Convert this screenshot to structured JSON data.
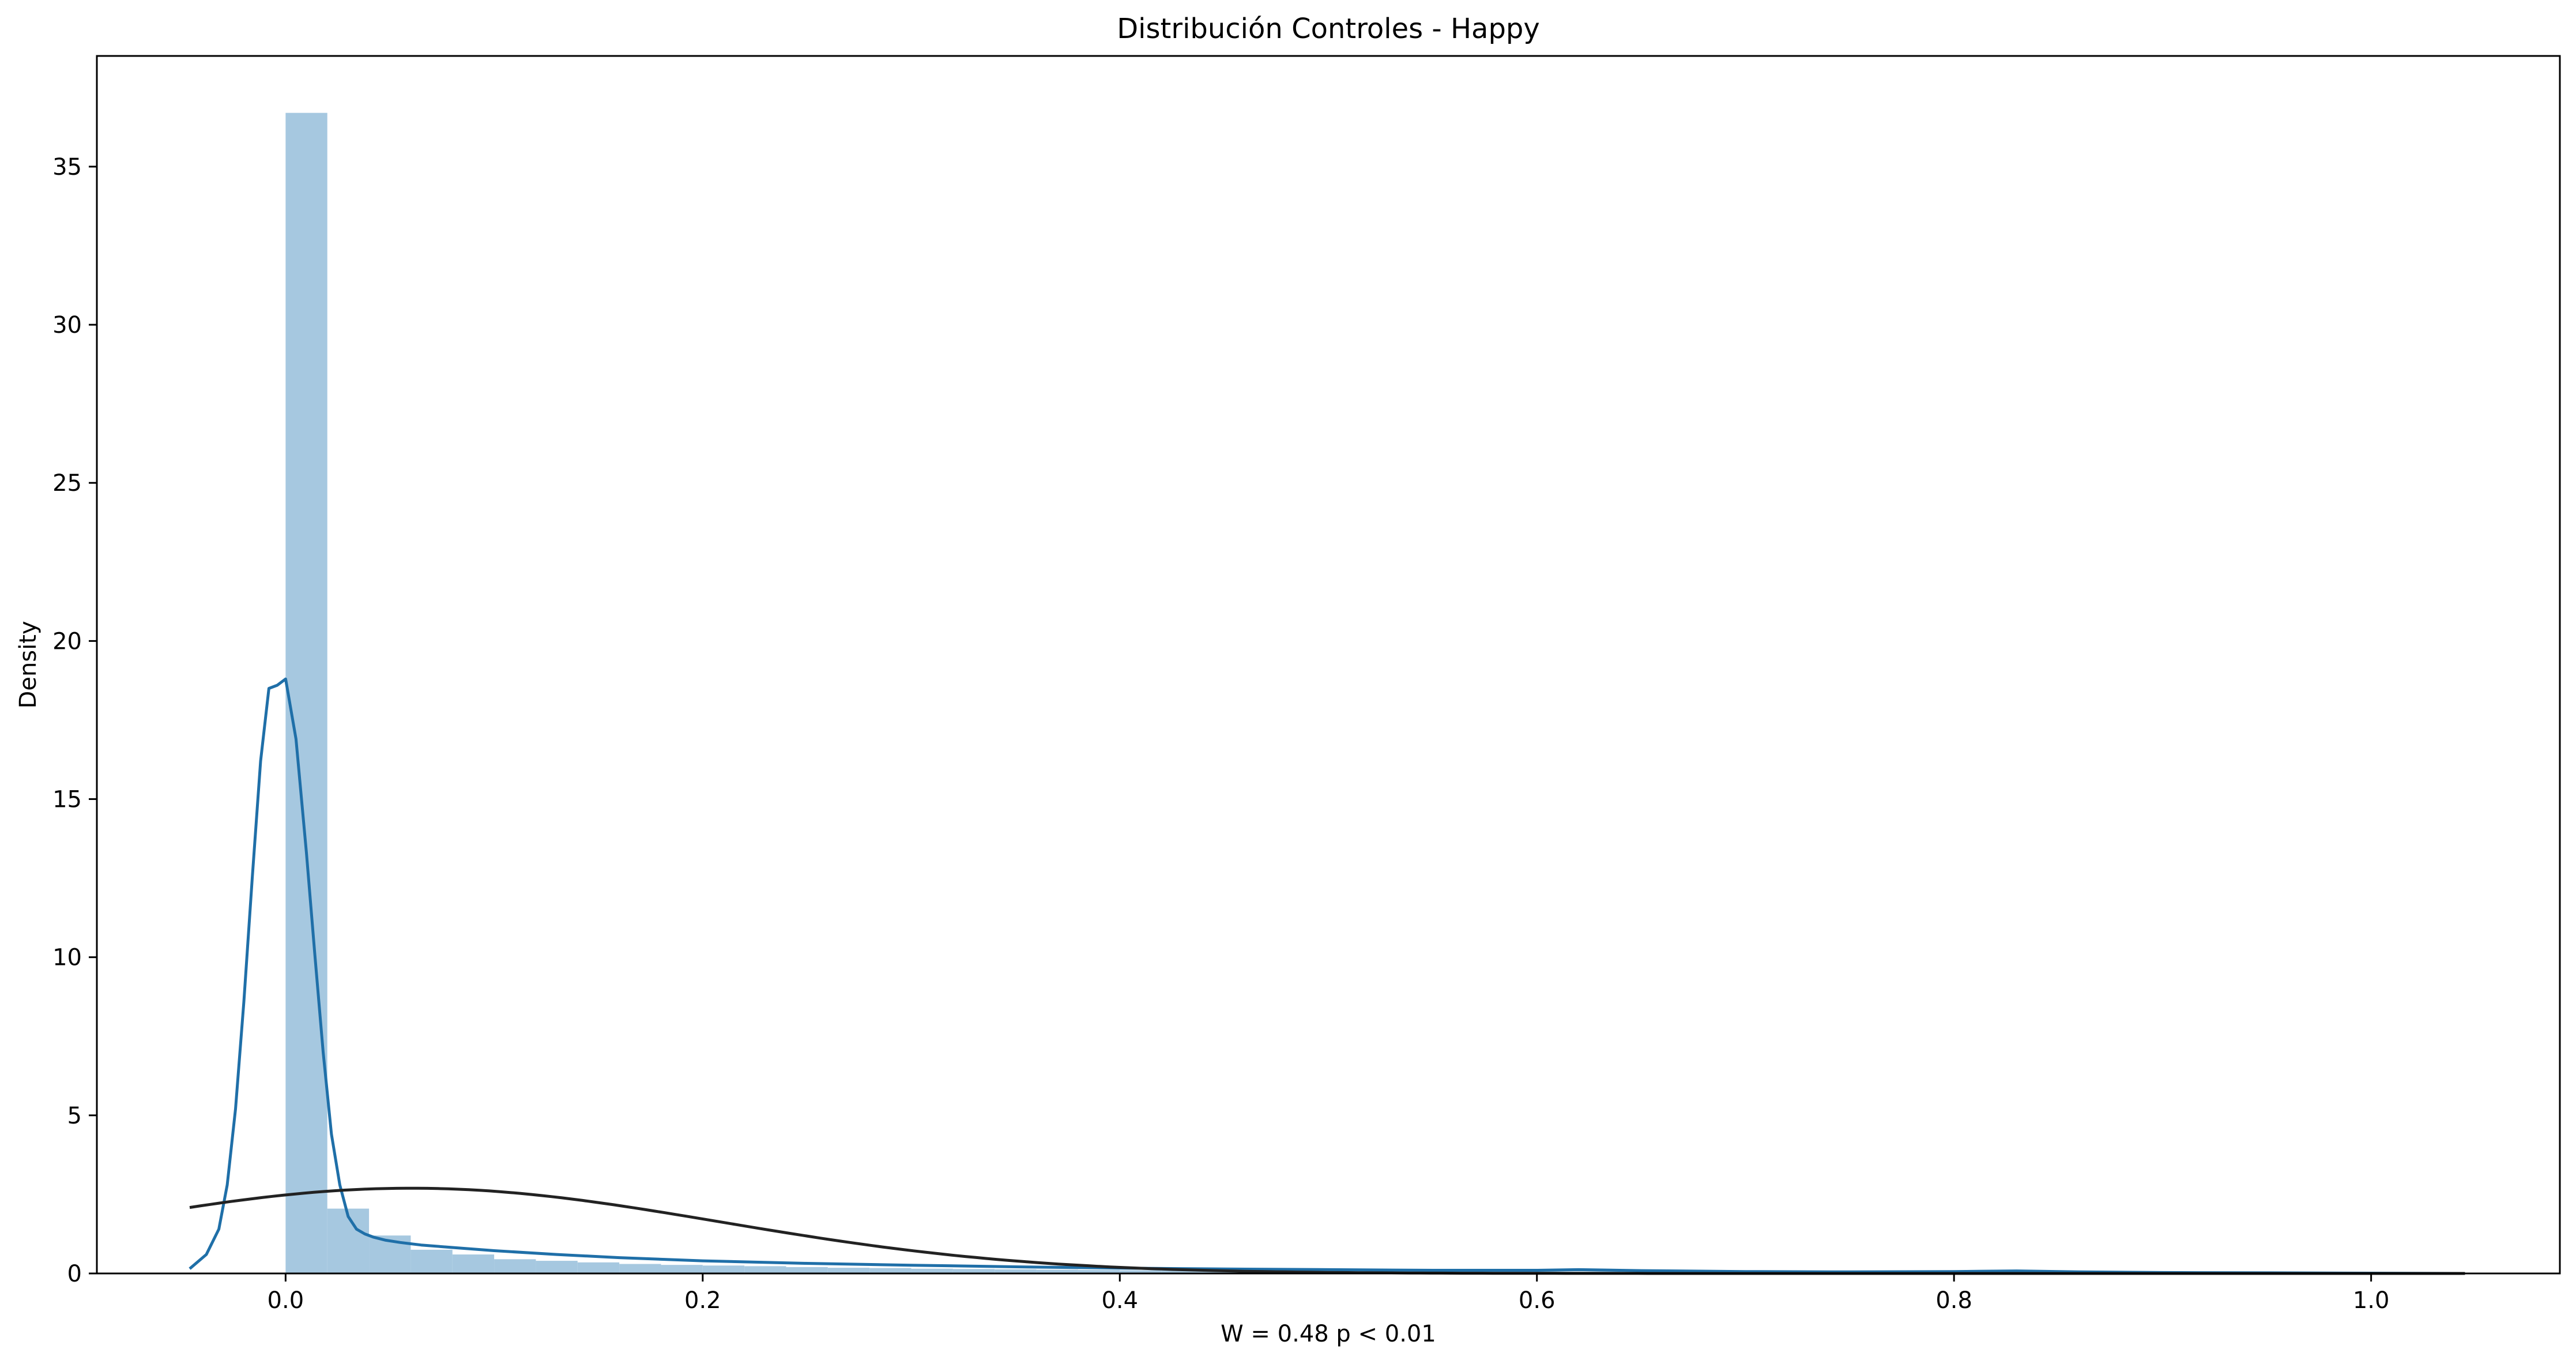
{
  "chart_data": {
    "type": "bar",
    "title": "Distribución Controles - Happy",
    "xlabel": "W = 0.48 p < 0.01",
    "ylabel": "Density",
    "xlim": [
      -0.0905,
      1.0905
    ],
    "ylim": [
      0,
      38.5
    ],
    "x_ticks": [
      "0.0",
      "0.2",
      "0.4",
      "0.6",
      "0.8",
      "1.0"
    ],
    "y_ticks": [
      "0",
      "5",
      "10",
      "15",
      "20",
      "25",
      "30",
      "35"
    ],
    "grid": false,
    "legend": "none",
    "histogram": {
      "bin_width": 0.02,
      "bin_start": 0.0,
      "densities": [
        36.7,
        2.05,
        1.2,
        0.75,
        0.6,
        0.45,
        0.4,
        0.35,
        0.3,
        0.27,
        0.25,
        0.23,
        0.2,
        0.18,
        0.17,
        0.15,
        0.14,
        0.13,
        0.12,
        0.11,
        0.1,
        0.1,
        0.09,
        0.09,
        0.08,
        0.08,
        0.07,
        0.07,
        0.07,
        0.06,
        0.06,
        0.06,
        0.05,
        0.05,
        0.05,
        0.05,
        0.04,
        0.04,
        0.04,
        0.04,
        0.04,
        0.04,
        0.03,
        0.03,
        0.03,
        0.03,
        0.03,
        0.03,
        0.03,
        0.03
      ],
      "color": "#a6c8e0"
    },
    "series": [
      {
        "kind": "kde",
        "color": "#1f6fa8",
        "x": [
          -0.046,
          -0.038,
          -0.032,
          -0.028,
          -0.024,
          -0.02,
          -0.016,
          -0.012,
          -0.008,
          -0.004,
          0.0,
          0.005,
          0.01,
          0.014,
          0.018,
          0.022,
          0.026,
          0.03,
          0.034,
          0.038,
          0.042,
          0.048,
          0.055,
          0.065,
          0.08,
          0.1,
          0.13,
          0.16,
          0.2,
          0.25,
          0.3,
          0.35,
          0.4,
          0.45,
          0.5,
          0.55,
          0.6,
          0.62,
          0.65,
          0.7,
          0.75,
          0.8,
          0.83,
          0.86,
          0.9,
          0.95,
          1.0,
          1.045
        ],
        "y": [
          0.15,
          0.6,
          1.4,
          2.8,
          5.2,
          8.6,
          12.5,
          16.2,
          18.5,
          18.6,
          18.8,
          16.9,
          13.3,
          10.1,
          7.0,
          4.4,
          2.8,
          1.8,
          1.4,
          1.25,
          1.15,
          1.05,
          0.98,
          0.9,
          0.82,
          0.72,
          0.6,
          0.5,
          0.4,
          0.32,
          0.26,
          0.21,
          0.17,
          0.14,
          0.12,
          0.1,
          0.1,
          0.12,
          0.09,
          0.06,
          0.05,
          0.06,
          0.08,
          0.05,
          0.03,
          0.02,
          0.01,
          0.0
        ]
      },
      {
        "kind": "normal-fit",
        "color": "#222222",
        "mean": 0.06,
        "sd": 0.148,
        "x_range": [
          -0.046,
          1.045
        ]
      }
    ]
  }
}
